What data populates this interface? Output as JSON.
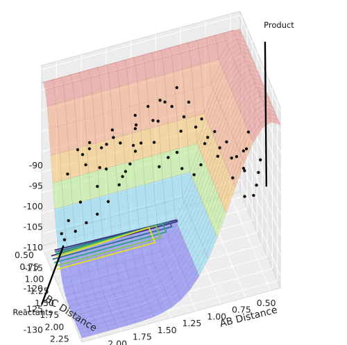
{
  "chart_data": {
    "type": "surface-3d",
    "xlabel": "AB Distance",
    "ylabel": "BC Distance",
    "z_ticks": [
      "-90",
      "-95",
      "-100",
      "-105",
      "-110",
      "-115",
      "-120",
      "-125",
      "-130"
    ],
    "x_ticks": [
      "0.50",
      "0.75",
      "1.00",
      "1.25",
      "1.50",
      "1.75",
      "2.00",
      "2.25"
    ],
    "y_ticks": [
      "0.50",
      "0.75",
      "1.00",
      "1.25",
      "1.50",
      "1.75",
      "2.00",
      "2.25"
    ],
    "zlim": [
      -133,
      -89
    ],
    "xlim": [
      0.4,
      2.4
    ],
    "ylim": [
      0.4,
      2.4
    ],
    "surface_color_bands": [
      "#6a6cf5",
      "#7fd5f2",
      "#b6ef8a",
      "#f6c26b",
      "#f2a57c",
      "#e88a86"
    ],
    "contour_colors": [
      "#3b2a78",
      "#2f6d8e",
      "#2aa07f",
      "#7bc84b",
      "#e3e21e"
    ],
    "annotations": [
      {
        "text": "Product",
        "ab": 0.5,
        "bc": 2.2,
        "z": -110
      },
      {
        "text": "Reactants",
        "ab": 2.2,
        "bc": 0.5,
        "z": -133
      }
    ],
    "points": [
      {
        "ab": 0.5,
        "bc": 1.9,
        "z": -107
      },
      {
        "ab": 0.55,
        "bc": 2.05,
        "z": -108
      },
      {
        "ab": 0.6,
        "bc": 2.2,
        "z": -109
      },
      {
        "ab": 0.65,
        "bc": 1.8,
        "z": -105
      },
      {
        "ab": 0.7,
        "bc": 2.1,
        "z": -106
      },
      {
        "ab": 0.75,
        "bc": 1.95,
        "z": -104
      },
      {
        "ab": 0.8,
        "bc": 1.7,
        "z": -103
      },
      {
        "ab": 0.85,
        "bc": 2.25,
        "z": -105
      },
      {
        "ab": 0.9,
        "bc": 1.6,
        "z": -101
      },
      {
        "ab": 0.95,
        "bc": 2.0,
        "z": -102
      },
      {
        "ab": 1.0,
        "bc": 1.45,
        "z": -99
      },
      {
        "ab": 1.05,
        "bc": 1.85,
        "z": -100
      },
      {
        "ab": 1.1,
        "bc": 1.3,
        "z": -96
      },
      {
        "ab": 1.15,
        "bc": 2.15,
        "z": -101
      },
      {
        "ab": 1.2,
        "bc": 1.2,
        "z": -93
      },
      {
        "ab": 1.25,
        "bc": 1.65,
        "z": -98
      },
      {
        "ab": 1.3,
        "bc": 1.1,
        "z": -97
      },
      {
        "ab": 1.35,
        "bc": 1.95,
        "z": -99
      },
      {
        "ab": 1.4,
        "bc": 1.0,
        "z": -102
      },
      {
        "ab": 1.45,
        "bc": 1.5,
        "z": -96
      },
      {
        "ab": 1.5,
        "bc": 0.9,
        "z": -108
      },
      {
        "ab": 1.55,
        "bc": 2.05,
        "z": -100
      },
      {
        "ab": 1.6,
        "bc": 0.85,
        "z": -113
      },
      {
        "ab": 1.65,
        "bc": 1.35,
        "z": -95
      },
      {
        "ab": 1.7,
        "bc": 0.8,
        "z": -118
      },
      {
        "ab": 1.75,
        "bc": 1.75,
        "z": -97
      },
      {
        "ab": 1.8,
        "bc": 0.75,
        "z": -122
      },
      {
        "ab": 1.85,
        "bc": 1.2,
        "z": -99
      },
      {
        "ab": 1.9,
        "bc": 0.7,
        "z": -125
      },
      {
        "ab": 1.95,
        "bc": 2.2,
        "z": -98
      },
      {
        "ab": 2.0,
        "bc": 0.65,
        "z": -127
      },
      {
        "ab": 2.05,
        "bc": 1.05,
        "z": -104
      },
      {
        "ab": 2.1,
        "bc": 0.6,
        "z": -129
      },
      {
        "ab": 2.15,
        "bc": 1.55,
        "z": -96
      },
      {
        "ab": 2.2,
        "bc": 0.55,
        "z": -131
      },
      {
        "ab": 2.25,
        "bc": 0.95,
        "z": -110
      },
      {
        "ab": 1.95,
        "bc": 0.95,
        "z": -115
      },
      {
        "ab": 2.0,
        "bc": 1.4,
        "z": -100
      },
      {
        "ab": 1.85,
        "bc": 0.9,
        "z": -112
      },
      {
        "ab": 1.75,
        "bc": 1.1,
        "z": -104
      },
      {
        "ab": 1.6,
        "bc": 1.15,
        "z": -100
      },
      {
        "ab": 1.5,
        "bc": 1.25,
        "z": -95
      },
      {
        "ab": 1.4,
        "bc": 1.35,
        "z": -93
      },
      {
        "ab": 1.3,
        "bc": 1.45,
        "z": -94
      },
      {
        "ab": 1.2,
        "bc": 1.55,
        "z": -96
      },
      {
        "ab": 1.1,
        "bc": 1.65,
        "z": -98
      },
      {
        "ab": 1.0,
        "bc": 1.75,
        "z": -100
      },
      {
        "ab": 0.9,
        "bc": 1.85,
        "z": -102
      },
      {
        "ab": 0.8,
        "bc": 1.95,
        "z": -104
      },
      {
        "ab": 0.7,
        "bc": 2.05,
        "z": -106
      },
      {
        "ab": 2.2,
        "bc": 0.75,
        "z": -124
      },
      {
        "ab": 2.1,
        "bc": 0.85,
        "z": -119
      },
      {
        "ab": 2.25,
        "bc": 0.65,
        "z": -128
      },
      {
        "ab": 2.15,
        "bc": 1.2,
        "z": -103
      },
      {
        "ab": 1.9,
        "bc": 1.5,
        "z": -97
      },
      {
        "ab": 1.7,
        "bc": 1.6,
        "z": -95
      },
      {
        "ab": 1.55,
        "bc": 1.8,
        "z": -97
      },
      {
        "ab": 1.45,
        "bc": 2.0,
        "z": -99
      },
      {
        "ab": 1.35,
        "bc": 2.2,
        "z": -100
      },
      {
        "ab": 1.25,
        "bc": 2.3,
        "z": -101
      },
      {
        "ab": 0.6,
        "bc": 1.7,
        "z": -106
      },
      {
        "ab": 0.55,
        "bc": 1.55,
        "z": -104
      },
      {
        "ab": 0.65,
        "bc": 2.3,
        "z": -110
      },
      {
        "ab": 0.75,
        "bc": 2.35,
        "z": -109
      },
      {
        "ab": 2.3,
        "bc": 1.7,
        "z": -95
      },
      {
        "ab": 2.3,
        "bc": 2.1,
        "z": -94
      },
      {
        "ab": 2.05,
        "bc": 1.9,
        "z": -93
      },
      {
        "ab": 1.8,
        "bc": 2.1,
        "z": -94
      },
      {
        "ab": 2.2,
        "bc": 2.3,
        "z": -93
      },
      {
        "ab": 1.95,
        "bc": 2.35,
        "z": -95
      }
    ]
  }
}
